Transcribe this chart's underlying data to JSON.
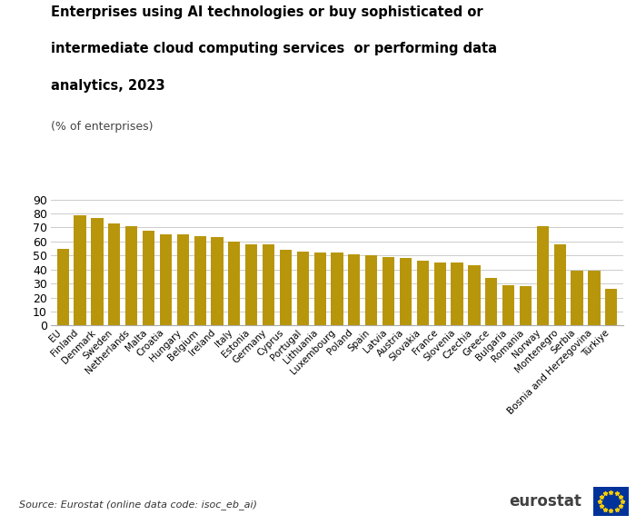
{
  "title_line1": "Enterprises using AI technologies or buy sophisticated or",
  "title_line2": "intermediate cloud computing services  or performing data",
  "title_line3": "analytics, 2023",
  "subtitle": "(% of enterprises)",
  "bar_color": "#B8960C",
  "background_color": "#ffffff",
  "source_text": "Source: Eurostat (online data code: isoc_eb_ai)",
  "categories": [
    "EU",
    "Finland",
    "Denmark",
    "Sweden",
    "Netherlands",
    "Malta",
    "Croatia",
    "Hungary",
    "Belgium",
    "Ireland",
    "Italy",
    "Estonia",
    "Germany",
    "Cyprus",
    "Portugal",
    "Lithuania",
    "Luxembourg",
    "Poland",
    "Spain",
    "Latvia",
    "Austria",
    "Slovakia",
    "France",
    "Slovenia",
    "Czechia",
    "Greece",
    "Bulgaria",
    "Romania",
    "Norway",
    "Montenegro",
    "Serbia",
    "Bosnia and Herzegovina",
    "Türkiye"
  ],
  "values": [
    55,
    79,
    77,
    73,
    71,
    68,
    65,
    65,
    64,
    63,
    60,
    58,
    58,
    54,
    53,
    52,
    52,
    51,
    50,
    49,
    48,
    46,
    45,
    45,
    43,
    34,
    29,
    28,
    71,
    58,
    39,
    39,
    26
  ],
  "ylim": [
    0,
    90
  ],
  "yticks": [
    0,
    10,
    20,
    30,
    40,
    50,
    60,
    70,
    80,
    90
  ],
  "grid_color": "#cccccc",
  "ytick_fontsize": 9,
  "xtick_fontsize": 7.5
}
